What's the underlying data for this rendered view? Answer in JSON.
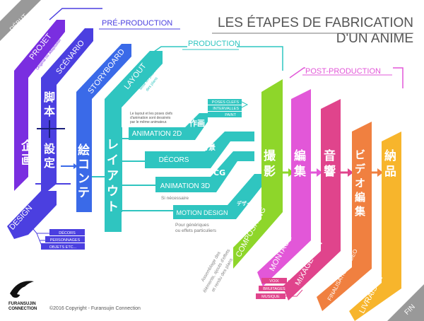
{
  "title": {
    "line1": "LES ÉTAPES DE FABRICATION",
    "line2": "D'UN ANIME"
  },
  "markers": {
    "start": "DÉBUT",
    "end": "FIN"
  },
  "sections": {
    "pre": "PRÉ-PRODUCTION",
    "prod": "PRODUCTION",
    "post": "POST-PRODUCTION"
  },
  "steps": {
    "projet": {
      "label": "PROJET",
      "note": "Original ou adaptation"
    },
    "scenario": {
      "label": "SCÉNARIO"
    },
    "storyboard": {
      "label": "STORYBOARD"
    },
    "layout": {
      "label": "LAYOUT",
      "note1": "Mise en place",
      "note2": "des plans"
    },
    "design": {
      "label": "DESIGN"
    },
    "compositing": {
      "label": "COMPOSITING"
    },
    "montage": {
      "label": "MONTAGE"
    },
    "mixage": {
      "label": "MIXAGE SON"
    },
    "finalisation": {
      "label": "FINALISATION VIDÉO"
    },
    "livraison": {
      "label": "LIVRAISON"
    }
  },
  "kanji": {
    "kikaku": "企画",
    "kyakuhon": "脚本",
    "settei": "設定",
    "ekonte": "絵コンテ",
    "layout": "レイアウト",
    "satsuei": "撮影",
    "henshu": "編集",
    "onkyo": "音響",
    "video": "ビデオ編集",
    "nohin": "納品",
    "sakuga": "作画",
    "haikei": "背景",
    "cg": "CG",
    "design": "デザイン"
  },
  "production": {
    "animation2d": "ANIMATION 2D",
    "decors": "DÉCORS",
    "animation3d": "ANIMATION 3D",
    "motion": "MOTION DESIGN",
    "poses": "POSES CLEFS",
    "intervalles": "INTERVALLES",
    "paint": "PAINT",
    "note2d_1": "Le layout et les poses clefs",
    "note2d_2": "d'animation sont dessinés",
    "note2d_3": "par le même animateur.",
    "si": "Si nécessaire",
    "pour1": "Pour génériques",
    "pour2": "ou effets particuliers"
  },
  "design_sub": [
    "DÉCORS",
    "PERSONNAGES",
    "OBJETS ETC..."
  ],
  "sound_sub": [
    "VOIX",
    "BRUITAGES",
    "MUSIQUE"
  ],
  "compositing_note": [
    "Assemblage des",
    "éléments, ajouts d'effets",
    "et rendu des plans"
  ],
  "logo_text": [
    "FURANSUJIN",
    "CONNECTION"
  ],
  "copyright": "©2016 Copyright - Furansujin Connection",
  "colors": {
    "purple": "#7a2ee0",
    "indigo": "#4b3fe0",
    "blue": "#3a6ae8",
    "teal": "#2fc5c0",
    "green": "#8ed62a",
    "pink": "#e257d8",
    "magenta": "#e0448c",
    "orange": "#f08040",
    "yellow": "#f7b52c",
    "gray": "#999999"
  }
}
